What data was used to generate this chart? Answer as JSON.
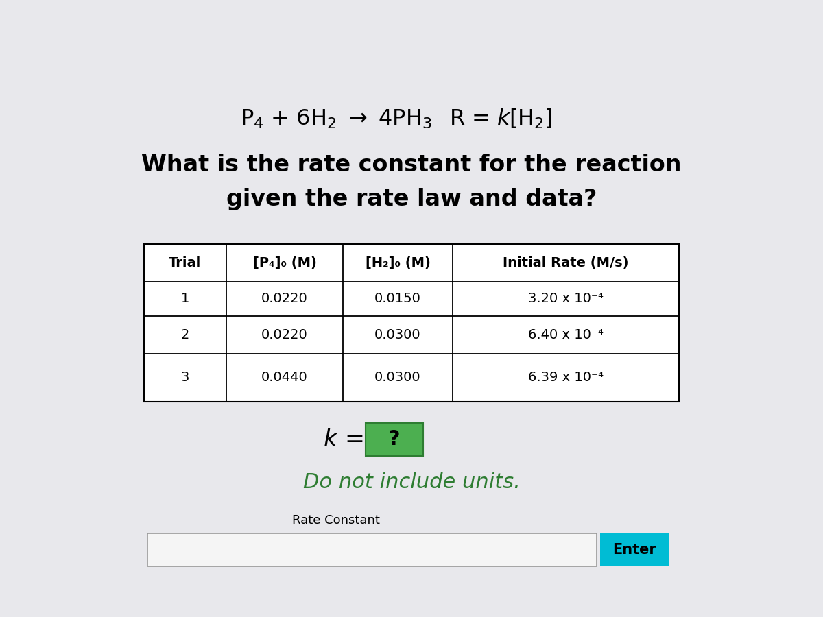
{
  "bg_color": "#e8e8ec",
  "top_bar_color": "#1a1a6e",
  "question_line1": "What is the rate constant for the reaction",
  "question_line2": "given the rate law and data?",
  "table_headers": [
    "Trial",
    "[P₄]₀ (M)",
    "[H₂]₀ (M)",
    "Initial Rate (M/s)"
  ],
  "table_data": [
    [
      "1",
      "0.0220",
      "0.0150",
      "3.20 x 10⁻⁴"
    ],
    [
      "2",
      "0.0220",
      "0.0300",
      "6.40 x 10⁻⁴"
    ],
    [
      "3",
      "0.0440",
      "0.0300",
      "6.39 x 10⁻⁴"
    ]
  ],
  "table_data_display": [
    [
      "1",
      "0.0220",
      "0.0150",
      "3.20 x 10-4"
    ],
    [
      "2",
      "0.0220",
      "0.0300",
      "6.40 x 10-4"
    ],
    [
      "3",
      "0.0440",
      "0.0300",
      "6.39 x 10-4"
    ]
  ],
  "q_box_color": "#4caf50",
  "q_box_edge": "#2e7d32",
  "italic_note": "Do not include units.",
  "italic_note_color": "#2e7d32",
  "label_text": "Rate Constant",
  "enter_btn_color": "#00bcd4",
  "enter_btn_text": "Enter",
  "enter_btn_text_color": "#000000",
  "input_bg": "#f5f5f5",
  "input_border": "#999999"
}
